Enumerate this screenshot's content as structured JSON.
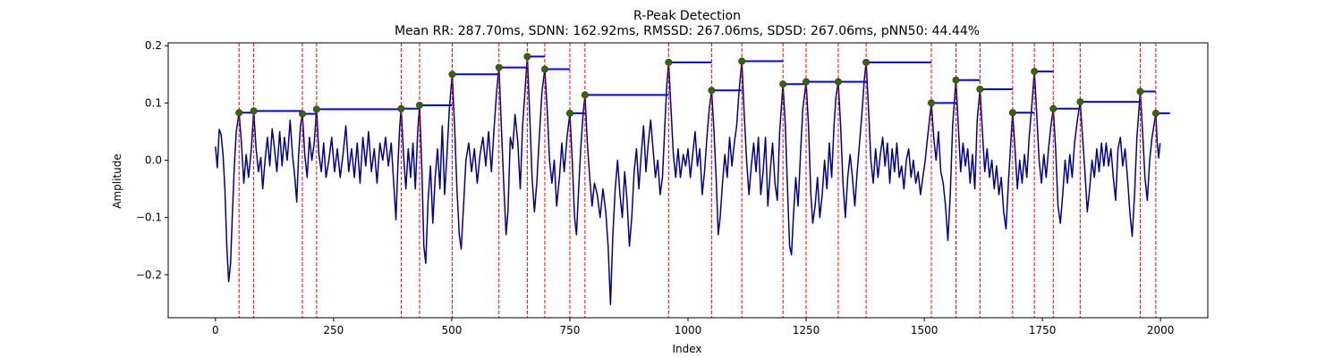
{
  "chart_data": {
    "type": "line",
    "title": "R-Peak Detection",
    "subtitle": "Mean RR: 287.70ms, SDNN: 162.92ms, RMSSD: 267.06ms, SDSD: 267.06ms, pNN50: 44.44%",
    "xlabel": "Index",
    "ylabel": "Amplitude",
    "xlim": [
      -100,
      2100
    ],
    "ylim": [
      -0.275,
      0.205
    ],
    "x_ticks": [
      0,
      250,
      500,
      750,
      1000,
      1250,
      1500,
      1750,
      2000
    ],
    "y_ticks": [
      -0.2,
      -0.1,
      0.0,
      0.1,
      0.2
    ],
    "x_tick_labels": [
      "0",
      "250",
      "500",
      "750",
      "1000",
      "1250",
      "1500",
      "1750",
      "2000"
    ],
    "y_tick_labels": [
      "−0.2",
      "−0.1",
      "0.0",
      "0.1",
      "0.2"
    ],
    "grid": false,
    "colors": {
      "signal": "#00008b",
      "peak_marker_fill": "#008000",
      "peak_marker_edge": "#c80000",
      "peak_vline": "#ff0000",
      "rr_segment": "#0000ff"
    },
    "peaks": [
      {
        "x": 50,
        "y": 0.083
      },
      {
        "x": 81,
        "y": 0.086
      },
      {
        "x": 184,
        "y": 0.081
      },
      {
        "x": 214,
        "y": 0.089
      },
      {
        "x": 393,
        "y": 0.09
      },
      {
        "x": 432,
        "y": 0.096
      },
      {
        "x": 501,
        "y": 0.15
      },
      {
        "x": 600,
        "y": 0.162
      },
      {
        "x": 660,
        "y": 0.181
      },
      {
        "x": 697,
        "y": 0.159
      },
      {
        "x": 750,
        "y": 0.082
      },
      {
        "x": 782,
        "y": 0.114
      },
      {
        "x": 959,
        "y": 0.171
      },
      {
        "x": 1050,
        "y": 0.122
      },
      {
        "x": 1114,
        "y": 0.173
      },
      {
        "x": 1201,
        "y": 0.133
      },
      {
        "x": 1250,
        "y": 0.137
      },
      {
        "x": 1318,
        "y": 0.137
      },
      {
        "x": 1377,
        "y": 0.171
      },
      {
        "x": 1515,
        "y": 0.1
      },
      {
        "x": 1567,
        "y": 0.14
      },
      {
        "x": 1618,
        "y": 0.124
      },
      {
        "x": 1687,
        "y": 0.083
      },
      {
        "x": 1733,
        "y": 0.155
      },
      {
        "x": 1773,
        "y": 0.09
      },
      {
        "x": 1830,
        "y": 0.102
      },
      {
        "x": 1957,
        "y": 0.12
      },
      {
        "x": 1990,
        "y": 0.082
      }
    ],
    "signal_points": [
      [
        0,
        0.024
      ],
      [
        4,
        -0.013
      ],
      [
        8,
        0.054
      ],
      [
        12,
        0.045
      ],
      [
        16,
        0.01
      ],
      [
        20,
        -0.05
      ],
      [
        24,
        -0.15
      ],
      [
        28,
        -0.212
      ],
      [
        32,
        -0.18
      ],
      [
        36,
        -0.09
      ],
      [
        40,
        -0.01
      ],
      [
        44,
        0.05
      ],
      [
        50,
        0.083
      ],
      [
        55,
        0.03
      ],
      [
        60,
        -0.04
      ],
      [
        65,
        0.01
      ],
      [
        70,
        -0.03
      ],
      [
        76,
        0.02
      ],
      [
        81,
        0.086
      ],
      [
        86,
        0.02
      ],
      [
        91,
        -0.02
      ],
      [
        96,
        0.005
      ],
      [
        100,
        -0.05
      ],
      [
        105,
        0.0
      ],
      [
        110,
        0.04
      ],
      [
        115,
        -0.01
      ],
      [
        120,
        0.055
      ],
      [
        125,
        0.02
      ],
      [
        130,
        -0.02
      ],
      [
        136,
        0.05
      ],
      [
        141,
        -0.01
      ],
      [
        146,
        0.04
      ],
      [
        152,
        0.0
      ],
      [
        158,
        0.07
      ],
      [
        163,
        0.01
      ],
      [
        168,
        -0.03
      ],
      [
        172,
        -0.073
      ],
      [
        176,
        0.01
      ],
      [
        180,
        0.06
      ],
      [
        184,
        0.081
      ],
      [
        189,
        0.01
      ],
      [
        194,
        -0.03
      ],
      [
        199,
        0.04
      ],
      [
        204,
        0.0
      ],
      [
        209,
        0.03
      ],
      [
        214,
        0.089
      ],
      [
        219,
        0.01
      ],
      [
        224,
        -0.02
      ],
      [
        229,
        0.03
      ],
      [
        234,
        -0.03
      ],
      [
        240,
        0.0
      ],
      [
        246,
        0.04
      ],
      [
        252,
        -0.02
      ],
      [
        258,
        0.02
      ],
      [
        264,
        -0.03
      ],
      [
        270,
        0.01
      ],
      [
        276,
        0.06
      ],
      [
        282,
        -0.02
      ],
      [
        288,
        0.02
      ],
      [
        294,
        -0.03
      ],
      [
        300,
        0.03
      ],
      [
        306,
        -0.04
      ],
      [
        312,
        0.04
      ],
      [
        318,
        -0.01
      ],
      [
        324,
        0.05
      ],
      [
        330,
        -0.02
      ],
      [
        336,
        0.02
      ],
      [
        342,
        -0.04
      ],
      [
        348,
        0.03
      ],
      [
        354,
        0.0
      ],
      [
        360,
        0.04
      ],
      [
        366,
        -0.01
      ],
      [
        372,
        0.03
      ],
      [
        378,
        -0.05
      ],
      [
        382,
        -0.104
      ],
      [
        386,
        -0.01
      ],
      [
        390,
        0.06
      ],
      [
        393,
        0.09
      ],
      [
        398,
        0.01
      ],
      [
        403,
        -0.05
      ],
      [
        408,
        0.02
      ],
      [
        413,
        -0.03
      ],
      [
        418,
        0.03
      ],
      [
        423,
        -0.05
      ],
      [
        428,
        0.05
      ],
      [
        432,
        0.096
      ],
      [
        437,
        -0.02
      ],
      [
        441,
        -0.15
      ],
      [
        445,
        -0.18
      ],
      [
        450,
        -0.07
      ],
      [
        455,
        -0.01
      ],
      [
        460,
        -0.11
      ],
      [
        465,
        -0.03
      ],
      [
        470,
        0.02
      ],
      [
        475,
        -0.05
      ],
      [
        480,
        0.06
      ],
      [
        485,
        -0.06
      ],
      [
        490,
        0.01
      ],
      [
        495,
        0.09
      ],
      [
        501,
        0.15
      ],
      [
        506,
        0.06
      ],
      [
        511,
        -0.05
      ],
      [
        516,
        -0.13
      ],
      [
        520,
        -0.155
      ],
      [
        525,
        -0.08
      ],
      [
        530,
        0.0
      ],
      [
        536,
        0.03
      ],
      [
        542,
        -0.02
      ],
      [
        548,
        0.02
      ],
      [
        554,
        -0.04
      ],
      [
        560,
        0.01
      ],
      [
        566,
        0.04
      ],
      [
        572,
        -0.01
      ],
      [
        578,
        0.05
      ],
      [
        584,
        -0.02
      ],
      [
        590,
        0.06
      ],
      [
        595,
        0.12
      ],
      [
        600,
        0.162
      ],
      [
        605,
        0.06
      ],
      [
        610,
        -0.04
      ],
      [
        615,
        -0.13
      ],
      [
        619,
        -0.09
      ],
      [
        624,
        0.04
      ],
      [
        629,
        0.02
      ],
      [
        634,
        0.08
      ],
      [
        640,
        0.03
      ],
      [
        645,
        -0.05
      ],
      [
        650,
        0.06
      ],
      [
        655,
        0.12
      ],
      [
        660,
        0.181
      ],
      [
        665,
        0.08
      ],
      [
        670,
        -0.03
      ],
      [
        675,
        -0.09
      ],
      [
        680,
        -0.04
      ],
      [
        686,
        0.05
      ],
      [
        691,
        0.12
      ],
      [
        697,
        0.159
      ],
      [
        702,
        0.09
      ],
      [
        707,
        0.0
      ],
      [
        712,
        -0.04
      ],
      [
        717,
        0.0
      ],
      [
        722,
        -0.08
      ],
      [
        728,
        -0.03
      ],
      [
        733,
        0.03
      ],
      [
        738,
        -0.02
      ],
      [
        744,
        0.04
      ],
      [
        750,
        0.082
      ],
      [
        755,
        0.0
      ],
      [
        760,
        -0.1
      ],
      [
        764,
        -0.13
      ],
      [
        768,
        -0.06
      ],
      [
        773,
        0.02
      ],
      [
        778,
        0.08
      ],
      [
        782,
        0.114
      ],
      [
        787,
        0.03
      ],
      [
        792,
        -0.03
      ],
      [
        797,
        -0.08
      ],
      [
        802,
        -0.04
      ],
      [
        808,
        -0.06
      ],
      [
        814,
        -0.1
      ],
      [
        820,
        -0.05
      ],
      [
        826,
        -0.09
      ],
      [
        831,
        -0.15
      ],
      [
        836,
        -0.252
      ],
      [
        841,
        -0.13
      ],
      [
        846,
        -0.05
      ],
      [
        851,
        0.0
      ],
      [
        856,
        -0.06
      ],
      [
        861,
        -0.1
      ],
      [
        866,
        -0.02
      ],
      [
        871,
        -0.07
      ],
      [
        876,
        -0.15
      ],
      [
        881,
        -0.1
      ],
      [
        886,
        -0.02
      ],
      [
        891,
        0.02
      ],
      [
        896,
        -0.05
      ],
      [
        901,
        0.01
      ],
      [
        906,
        0.06
      ],
      [
        911,
        -0.02
      ],
      [
        916,
        0.03
      ],
      [
        921,
        0.07
      ],
      [
        926,
        0.02
      ],
      [
        931,
        -0.03
      ],
      [
        936,
        0.0
      ],
      [
        941,
        -0.06
      ],
      [
        946,
        -0.03
      ],
      [
        951,
        0.06
      ],
      [
        955,
        0.13
      ],
      [
        959,
        0.171
      ],
      [
        964,
        0.09
      ],
      [
        969,
        0.01
      ],
      [
        974,
        -0.03
      ],
      [
        979,
        0.02
      ],
      [
        984,
        -0.03
      ],
      [
        990,
        0.01
      ],
      [
        995,
        -0.01
      ],
      [
        1000,
        0.02
      ],
      [
        1005,
        -0.03
      ],
      [
        1010,
        0.01
      ],
      [
        1015,
        0.05
      ],
      [
        1020,
        -0.01
      ],
      [
        1025,
        0.02
      ],
      [
        1030,
        -0.06
      ],
      [
        1035,
        -0.02
      ],
      [
        1040,
        0.04
      ],
      [
        1045,
        0.09
      ],
      [
        1050,
        0.122
      ],
      [
        1055,
        0.05
      ],
      [
        1060,
        -0.04
      ],
      [
        1064,
        -0.13
      ],
      [
        1068,
        -0.1
      ],
      [
        1073,
        -0.04
      ],
      [
        1078,
        0.01
      ],
      [
        1083,
        -0.03
      ],
      [
        1088,
        0.04
      ],
      [
        1093,
        -0.01
      ],
      [
        1098,
        0.03
      ],
      [
        1103,
        0.06
      ],
      [
        1108,
        0.12
      ],
      [
        1114,
        0.173
      ],
      [
        1119,
        0.08
      ],
      [
        1124,
        0.0
      ],
      [
        1129,
        -0.06
      ],
      [
        1134,
        -0.01
      ],
      [
        1139,
        0.03
      ],
      [
        1144,
        -0.02
      ],
      [
        1149,
        0.04
      ],
      [
        1154,
        -0.06
      ],
      [
        1159,
        -0.02
      ],
      [
        1164,
        0.04
      ],
      [
        1169,
        -0.08
      ],
      [
        1174,
        -0.02
      ],
      [
        1179,
        0.03
      ],
      [
        1184,
        -0.04
      ],
      [
        1189,
        -0.07
      ],
      [
        1194,
        0.05
      ],
      [
        1201,
        0.133
      ],
      [
        1206,
        0.06
      ],
      [
        1211,
        -0.06
      ],
      [
        1215,
        -0.15
      ],
      [
        1219,
        -0.165
      ],
      [
        1223,
        -0.1
      ],
      [
        1228,
        -0.03
      ],
      [
        1233,
        -0.08
      ],
      [
        1238,
        0.01
      ],
      [
        1243,
        0.09
      ],
      [
        1250,
        0.137
      ],
      [
        1255,
        0.06
      ],
      [
        1260,
        -0.06
      ],
      [
        1264,
        -0.11
      ],
      [
        1269,
        -0.08
      ],
      [
        1274,
        -0.03
      ],
      [
        1279,
        -0.1
      ],
      [
        1284,
        -0.06
      ],
      [
        1289,
        0.0
      ],
      [
        1294,
        -0.05
      ],
      [
        1299,
        0.03
      ],
      [
        1304,
        -0.03
      ],
      [
        1309,
        0.06
      ],
      [
        1313,
        0.11
      ],
      [
        1318,
        0.137
      ],
      [
        1323,
        0.06
      ],
      [
        1328,
        -0.04
      ],
      [
        1333,
        -0.1
      ],
      [
        1338,
        -0.03
      ],
      [
        1343,
        0.01
      ],
      [
        1348,
        -0.03
      ],
      [
        1353,
        -0.08
      ],
      [
        1358,
        -0.02
      ],
      [
        1363,
        0.03
      ],
      [
        1368,
        0.08
      ],
      [
        1373,
        0.14
      ],
      [
        1377,
        0.171
      ],
      [
        1382,
        0.09
      ],
      [
        1387,
        0.0
      ],
      [
        1392,
        -0.04
      ],
      [
        1397,
        0.02
      ],
      [
        1402,
        -0.03
      ],
      [
        1407,
        0.01
      ],
      [
        1412,
        0.04
      ],
      [
        1417,
        -0.01
      ],
      [
        1422,
        0.03
      ],
      [
        1427,
        -0.04
      ],
      [
        1432,
        0.02
      ],
      [
        1437,
        -0.02
      ],
      [
        1442,
        0.03
      ],
      [
        1447,
        -0.03
      ],
      [
        1452,
        -0.01
      ],
      [
        1457,
        -0.05
      ],
      [
        1462,
        0.0
      ],
      [
        1467,
        0.02
      ],
      [
        1472,
        -0.03
      ],
      [
        1477,
        0.0
      ],
      [
        1482,
        -0.04
      ],
      [
        1487,
        -0.02
      ],
      [
        1492,
        -0.06
      ],
      [
        1497,
        -0.03
      ],
      [
        1502,
        0.0
      ],
      [
        1507,
        0.04
      ],
      [
        1515,
        0.1
      ],
      [
        1520,
        0.04
      ],
      [
        1525,
        0.0
      ],
      [
        1530,
        0.05
      ],
      [
        1535,
        -0.02
      ],
      [
        1540,
        -0.04
      ],
      [
        1545,
        -0.08
      ],
      [
        1550,
        -0.14
      ],
      [
        1555,
        -0.06
      ],
      [
        1560,
        0.06
      ],
      [
        1567,
        0.14
      ],
      [
        1572,
        0.06
      ],
      [
        1577,
        -0.02
      ],
      [
        1582,
        0.03
      ],
      [
        1587,
        -0.01
      ],
      [
        1592,
        0.02
      ],
      [
        1597,
        -0.04
      ],
      [
        1602,
        0.01
      ],
      [
        1607,
        -0.05
      ],
      [
        1612,
        0.07
      ],
      [
        1618,
        0.124
      ],
      [
        1623,
        0.05
      ],
      [
        1628,
        -0.02
      ],
      [
        1633,
        0.02
      ],
      [
        1638,
        -0.03
      ],
      [
        1643,
        0.0
      ],
      [
        1648,
        -0.05
      ],
      [
        1653,
        -0.01
      ],
      [
        1658,
        -0.06
      ],
      [
        1663,
        -0.03
      ],
      [
        1668,
        -0.09
      ],
      [
        1673,
        -0.12
      ],
      [
        1678,
        -0.04
      ],
      [
        1683,
        0.03
      ],
      [
        1687,
        0.083
      ],
      [
        1692,
        0.02
      ],
      [
        1697,
        -0.05
      ],
      [
        1702,
        0.0
      ],
      [
        1707,
        -0.04
      ],
      [
        1712,
        0.01
      ],
      [
        1717,
        -0.03
      ],
      [
        1722,
        0.04
      ],
      [
        1728,
        0.1
      ],
      [
        1733,
        0.155
      ],
      [
        1738,
        0.08
      ],
      [
        1743,
        0.0
      ],
      [
        1748,
        -0.04
      ],
      [
        1753,
        0.01
      ],
      [
        1758,
        -0.03
      ],
      [
        1763,
        0.02
      ],
      [
        1768,
        0.06
      ],
      [
        1773,
        0.09
      ],
      [
        1778,
        0.02
      ],
      [
        1783,
        -0.08
      ],
      [
        1788,
        -0.11
      ],
      [
        1793,
        -0.06
      ],
      [
        1798,
        0.0
      ],
      [
        1803,
        -0.04
      ],
      [
        1808,
        0.01
      ],
      [
        1813,
        -0.03
      ],
      [
        1818,
        0.03
      ],
      [
        1824,
        0.07
      ],
      [
        1830,
        0.102
      ],
      [
        1835,
        0.04
      ],
      [
        1840,
        -0.02
      ],
      [
        1845,
        -0.09
      ],
      [
        1850,
        -0.05
      ],
      [
        1855,
        0.0
      ],
      [
        1860,
        -0.03
      ],
      [
        1865,
        0.02
      ],
      [
        1870,
        -0.02
      ],
      [
        1875,
        0.03
      ],
      [
        1880,
        -0.01
      ],
      [
        1885,
        0.03
      ],
      [
        1890,
        -0.01
      ],
      [
        1895,
        0.02
      ],
      [
        1900,
        -0.03
      ],
      [
        1905,
        -0.07
      ],
      [
        1910,
        0.02
      ],
      [
        1915,
        0.04
      ],
      [
        1920,
        -0.01
      ],
      [
        1925,
        0.02
      ],
      [
        1930,
        -0.03
      ],
      [
        1935,
        -0.09
      ],
      [
        1940,
        -0.133
      ],
      [
        1945,
        -0.06
      ],
      [
        1950,
        0.04
      ],
      [
        1957,
        0.12
      ],
      [
        1962,
        0.05
      ],
      [
        1967,
        -0.03
      ],
      [
        1972,
        -0.07
      ],
      [
        1977,
        0.0
      ],
      [
        1982,
        0.04
      ],
      [
        1986,
        0.06
      ],
      [
        1990,
        0.082
      ],
      [
        1993,
        0.03
      ],
      [
        1996,
        0.004
      ],
      [
        1999,
        0.03
      ]
    ]
  }
}
